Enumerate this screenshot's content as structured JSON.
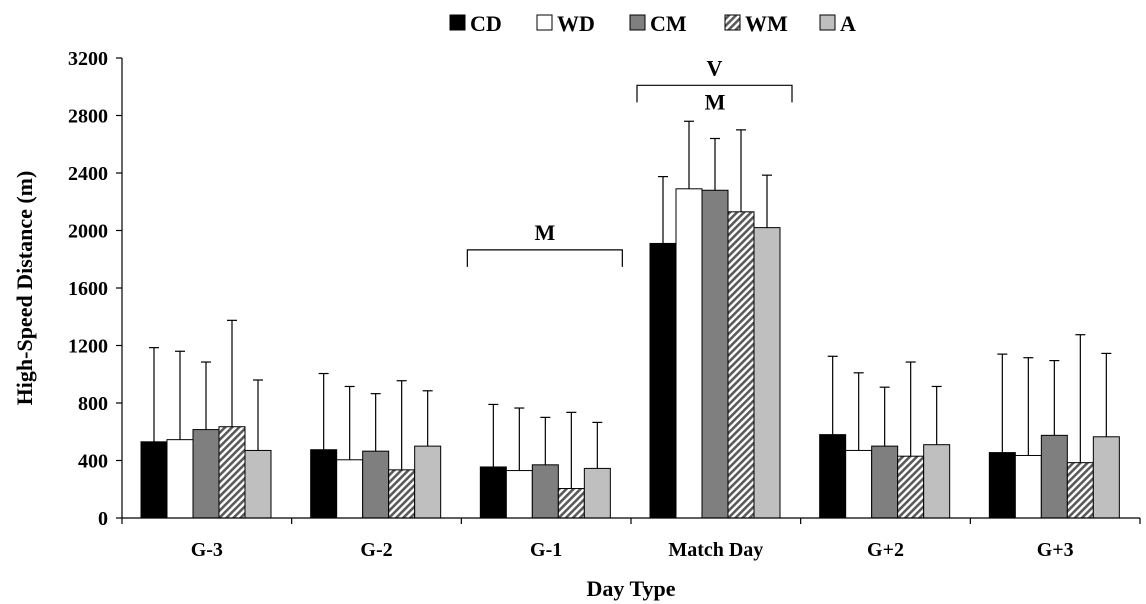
{
  "chart_data": {
    "type": "bar",
    "xlabel": "Day Type",
    "ylabel": "High-Speed Distance (m)",
    "ylim": [
      0,
      3200
    ],
    "yticks": [
      0,
      400,
      800,
      1200,
      1600,
      2000,
      2400,
      2800,
      3200
    ],
    "ytick_labels": [
      "0",
      "400",
      "800",
      "1200",
      "1600",
      "2000",
      "2400",
      "2800",
      "3200"
    ],
    "categories": [
      "G-3",
      "G-2",
      "G-1",
      "Match Day",
      "G+2",
      "G+3"
    ],
    "legend_position": "top",
    "grid": false,
    "error_bars": "upper standard deviation",
    "series": [
      {
        "name": "CD",
        "color": "#000000",
        "pattern": "solid",
        "values": [
          530,
          475,
          355,
          1910,
          580,
          455
        ],
        "err_top": [
          1185,
          1005,
          790,
          2375,
          1125,
          1140
        ]
      },
      {
        "name": "WD",
        "color": "#ffffff",
        "pattern": "solid",
        "values": [
          545,
          405,
          330,
          2290,
          470,
          435
        ],
        "err_top": [
          1160,
          915,
          765,
          2760,
          1010,
          1115
        ]
      },
      {
        "name": "CM",
        "color": "#7f7f7f",
        "pattern": "solid",
        "values": [
          615,
          465,
          370,
          2280,
          500,
          575
        ],
        "err_top": [
          1085,
          865,
          700,
          2640,
          910,
          1095
        ]
      },
      {
        "name": "WM",
        "color": "#b0b0b0",
        "pattern": "hatch",
        "values": [
          635,
          335,
          205,
          2130,
          430,
          385
        ],
        "err_top": [
          1375,
          955,
          735,
          2700,
          1085,
          1275
        ]
      },
      {
        "name": "A",
        "color": "#bfbfbf",
        "pattern": "solid",
        "values": [
          470,
          500,
          345,
          2020,
          510,
          565
        ],
        "err_top": [
          960,
          885,
          665,
          2385,
          915,
          1145
        ]
      }
    ],
    "annotations": [
      {
        "text": "M",
        "bracket_category": "G-1"
      },
      {
        "text": "V",
        "bracket_category": "Match Day"
      },
      {
        "text": "M",
        "category": "Match Day"
      }
    ]
  }
}
